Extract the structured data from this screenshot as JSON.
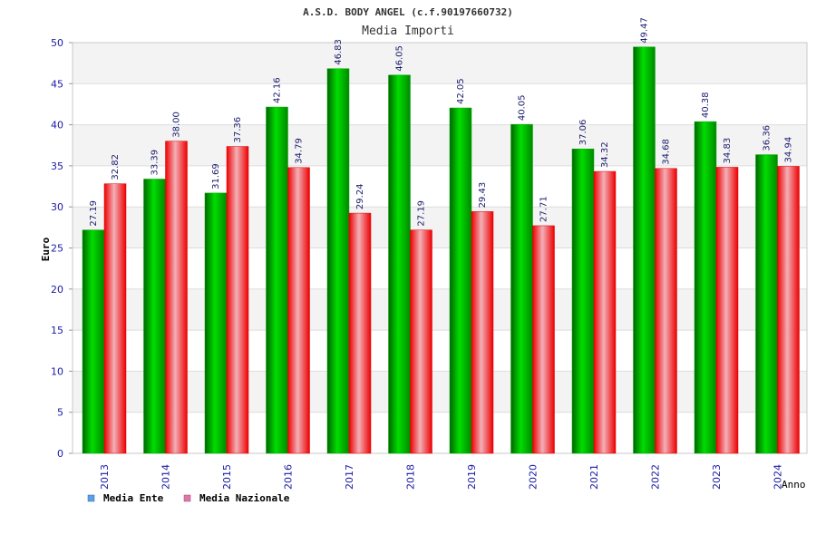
{
  "chart_data": {
    "type": "bar",
    "title": "A.S.D. BODY ANGEL (c.f.90197660732)",
    "subtitle": "Media Importi",
    "xlabel": "Anno",
    "ylabel": "Euro",
    "ylim": [
      0,
      50
    ],
    "yticks": [
      0,
      5,
      10,
      15,
      20,
      25,
      30,
      35,
      40,
      45,
      50
    ],
    "grid": true,
    "legend_position": "bottom-left",
    "categories": [
      "2013",
      "2014",
      "2015",
      "2016",
      "2017",
      "2018",
      "2019",
      "2020",
      "2021",
      "2022",
      "2023",
      "2024"
    ],
    "series": [
      {
        "name": "Media Ente",
        "color": "#00b000",
        "legend_color": "#5aa0e6",
        "values": [
          27.19,
          33.39,
          31.69,
          42.16,
          46.83,
          46.05,
          42.05,
          40.05,
          37.06,
          49.47,
          40.38,
          36.36
        ],
        "labels": [
          "27.19",
          "33.39",
          "31.69",
          "42.16",
          "46.83",
          "46.05",
          "42.05",
          "40.05",
          "37.06",
          "49.47",
          "40.38",
          "36.36"
        ]
      },
      {
        "name": "Media Nazionale",
        "color": "#ee1111",
        "legend_color": "#dd77aa",
        "values": [
          32.82,
          38.0,
          37.36,
          34.79,
          29.24,
          27.19,
          29.43,
          27.71,
          34.32,
          34.68,
          34.83,
          34.94
        ],
        "labels": [
          "32.82",
          "38.00",
          "37.36",
          "34.79",
          "29.24",
          "27.19",
          "29.43",
          "27.71",
          "34.32",
          "34.68",
          "34.83",
          "34.94"
        ]
      }
    ]
  }
}
